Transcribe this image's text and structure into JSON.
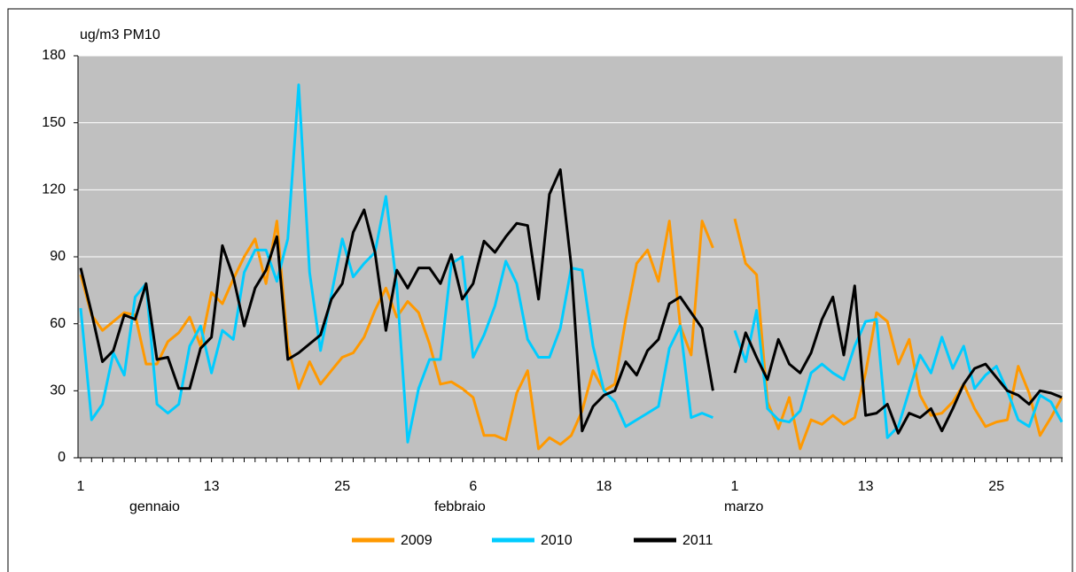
{
  "chart_data": {
    "type": "line",
    "y_label": "ug/m3 PM10",
    "categories": [
      "1",
      null,
      null,
      null,
      null,
      null,
      null,
      null,
      null,
      null,
      null,
      null,
      "13",
      null,
      null,
      null,
      null,
      null,
      null,
      null,
      null,
      null,
      null,
      null,
      "25",
      null,
      null,
      null,
      null,
      null,
      null,
      null,
      null,
      null,
      null,
      null,
      "6",
      null,
      null,
      null,
      null,
      null,
      null,
      null,
      null,
      null,
      null,
      null,
      "18",
      null,
      null,
      null,
      null,
      null,
      null,
      null,
      null,
      null,
      null,
      null,
      "1",
      null,
      null,
      null,
      null,
      null,
      null,
      null,
      null,
      null,
      null,
      null,
      "13",
      null,
      null,
      null,
      null,
      null,
      null,
      null,
      null,
      null,
      null,
      null,
      "25",
      null,
      null,
      null,
      null,
      null,
      null
    ],
    "month_labels": [
      "gennaio",
      "febbraio",
      "marzo"
    ],
    "ylim": [
      0,
      180
    ],
    "yticks": [
      0,
      30,
      60,
      90,
      120,
      150,
      180
    ],
    "grid": true,
    "legend": "bottom",
    "series": [
      {
        "name": "2009",
        "color": "#ff9900",
        "values": [
          82,
          64,
          57,
          61,
          65,
          64,
          42,
          42,
          52,
          56,
          63,
          50,
          74,
          69,
          80,
          90,
          98,
          78,
          106,
          50,
          31,
          43,
          33,
          39,
          45,
          47,
          54,
          66,
          76,
          63,
          70,
          65,
          51,
          33,
          34,
          31,
          27,
          10,
          10,
          8,
          29,
          39,
          4,
          9,
          6,
          10,
          21,
          39,
          30,
          33,
          62,
          87,
          93,
          79,
          106,
          59,
          46,
          106,
          94,
          null,
          107,
          87,
          82,
          25,
          13,
          27,
          4,
          17,
          15,
          19,
          15,
          18,
          38,
          65,
          61,
          42,
          53,
          28,
          19,
          20,
          25,
          33,
          22,
          14,
          16,
          17,
          41,
          29,
          10,
          18,
          27
        ]
      },
      {
        "name": "2010",
        "color": "#00ccff",
        "values": [
          67,
          17,
          24,
          47,
          37,
          72,
          78,
          24,
          20,
          24,
          50,
          59,
          38,
          57,
          53,
          83,
          93,
          93,
          79,
          98,
          167,
          83,
          48,
          73,
          98,
          81,
          87,
          92,
          117,
          77,
          7,
          31,
          44,
          44,
          87,
          90,
          45,
          55,
          68,
          88,
          78,
          53,
          45,
          45,
          58,
          85,
          84,
          50,
          30,
          25,
          14,
          17,
          20,
          23,
          49,
          59,
          18,
          20,
          18,
          null,
          57,
          43,
          66,
          22,
          17,
          16,
          21,
          38,
          42,
          38,
          35,
          50,
          61,
          62,
          9,
          14,
          30,
          46,
          38,
          54,
          40,
          50,
          31,
          37,
          41,
          30,
          17,
          14,
          28,
          25,
          16
        ]
      },
      {
        "name": "2011",
        "color": "#000000",
        "values": [
          85,
          65,
          43,
          48,
          64,
          62,
          78,
          44,
          45,
          31,
          31,
          49,
          54,
          95,
          81,
          59,
          76,
          84,
          99,
          44,
          47,
          51,
          55,
          71,
          78,
          101,
          111,
          92,
          57,
          84,
          76,
          85,
          85,
          78,
          91,
          71,
          78,
          97,
          92,
          99,
          105,
          104,
          71,
          118,
          129,
          86,
          12,
          23,
          28,
          30,
          43,
          37,
          48,
          53,
          69,
          72,
          65,
          58,
          30,
          null,
          38,
          56,
          45,
          35,
          53,
          42,
          38,
          47,
          62,
          72,
          46,
          77,
          19,
          20,
          24,
          11,
          20,
          18,
          22,
          12,
          22,
          33,
          40,
          42,
          36,
          30,
          28,
          24,
          30,
          29,
          27
        ]
      }
    ]
  }
}
